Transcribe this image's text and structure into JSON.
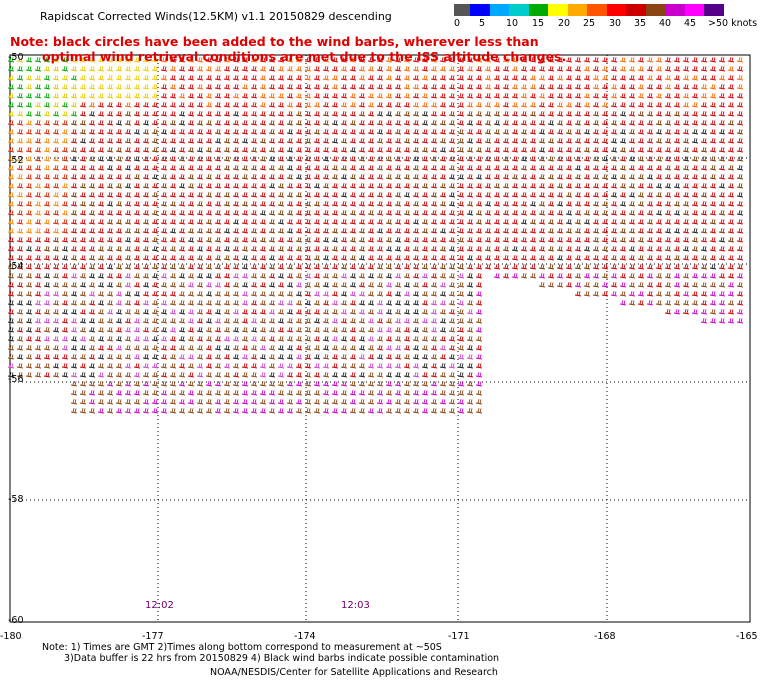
{
  "title": "Rapidscat Corrected Winds(12.5KM) v1.1 20150829 descending",
  "note": {
    "line1": "Note: black circles have been added to the wind barbs, wherever less than",
    "line2": "optimal wind retrieval conditions are met due to the ISS altitude changes."
  },
  "legend": {
    "colors": [
      "#555555",
      "#0000ff",
      "#00a8ff",
      "#00cccc",
      "#00aa00",
      "#ffff00",
      "#ffaa00",
      "#ff5500",
      "#ff0000",
      "#cc0000",
      "#8b4513",
      "#cc00cc",
      "#ff00ff",
      "#550088"
    ],
    "labels": [
      "0",
      "5",
      "10",
      "15",
      "20",
      "25",
      "30",
      "35",
      "40",
      "45",
      ">50 knots"
    ]
  },
  "map": {
    "lat_labels": [
      "-50",
      "-52",
      "-54",
      "-56",
      "-58",
      "-60"
    ],
    "lon_labels": [
      "-180",
      "-177",
      "-174",
      "-171",
      "-168",
      "-165"
    ],
    "time_labels": [
      "12:02",
      "12:03"
    ]
  },
  "footer": {
    "line1": "Note: 1) Times are GMT 2)Times along bottom correspond to measurement at ~50S",
    "line2": "3)Data buffer is 22 hrs from 20150829 4) Black wind barbs indicate possible contamination",
    "credit": "NOAA/NESDIS/Center for Satellite Applications and Research"
  }
}
